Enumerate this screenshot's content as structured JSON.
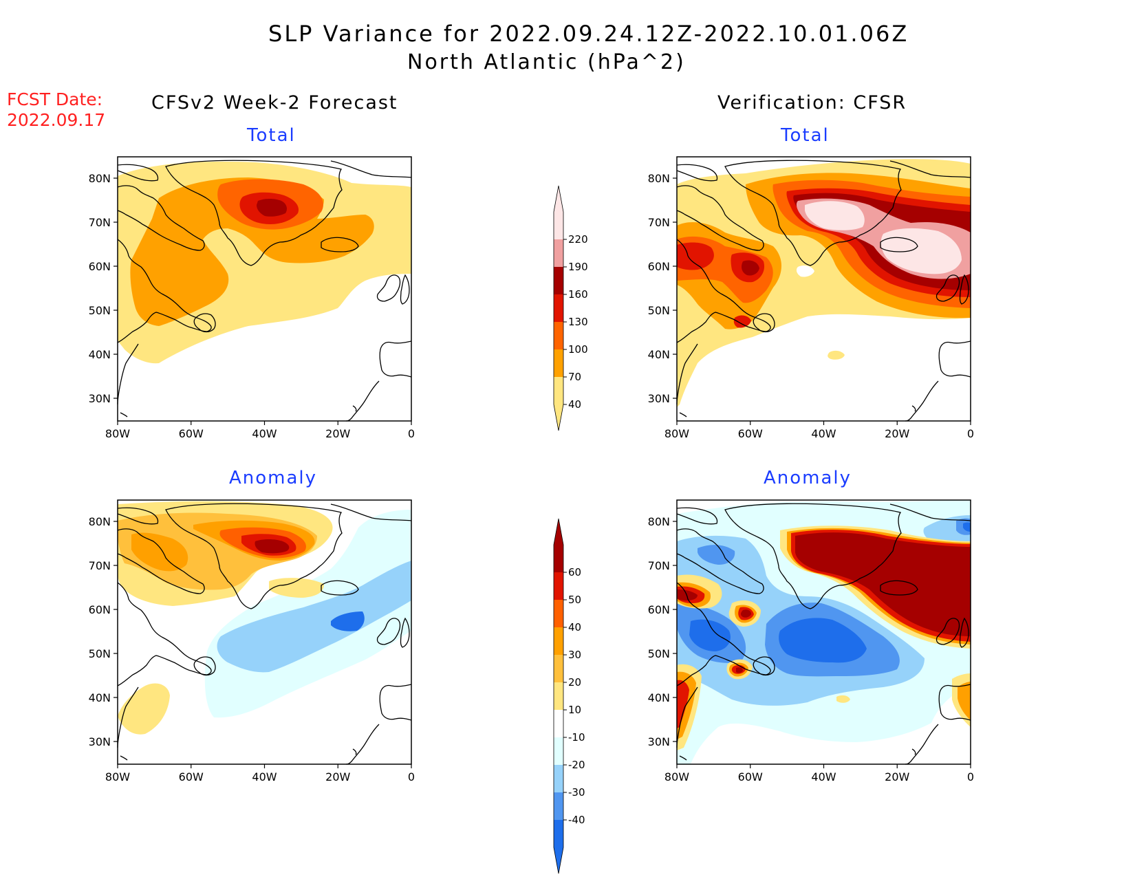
{
  "header": {
    "title": "SLP Variance for 2022.09.24.12Z-2022.10.01.06Z",
    "subtitle": "North Atlantic (hPa^2)"
  },
  "fcst_date": {
    "label": "FCST Date:",
    "value": "2022.09.17"
  },
  "columns": {
    "left": "CFSv2 Week-2 Forecast",
    "right": "Verification: CFSR"
  },
  "panels": {
    "top_left": {
      "title": "Total"
    },
    "top_right": {
      "title": "Total"
    },
    "bottom_left": {
      "title": "Anomaly"
    },
    "bottom_right": {
      "title": "Anomaly"
    }
  },
  "axes": {
    "lat_labels": [
      "80N",
      "70N",
      "60N",
      "50N",
      "40N",
      "30N"
    ],
    "lon_labels": [
      "80W",
      "60W",
      "40W",
      "20W",
      "0"
    ]
  },
  "colorbars": {
    "total": {
      "levels": [
        "40",
        "70",
        "100",
        "130",
        "160",
        "190",
        "220"
      ],
      "colors": [
        "#ffe680",
        "#ffa100",
        "#ff6400",
        "#e11400",
        "#a50000",
        "#f0a0a0",
        "#fde6e6"
      ]
    },
    "anomaly": {
      "levels": [
        "-40",
        "-30",
        "-20",
        "-10",
        "10",
        "20",
        "30",
        "40",
        "50",
        "60"
      ],
      "colors": [
        "#1e6eeb",
        "#5096f0",
        "#96d2fa",
        "#e1ffff",
        "#ffffff",
        "#ffe680",
        "#ffc03c",
        "#ffa000",
        "#ff6000",
        "#e11400",
        "#a50000"
      ]
    }
  }
}
